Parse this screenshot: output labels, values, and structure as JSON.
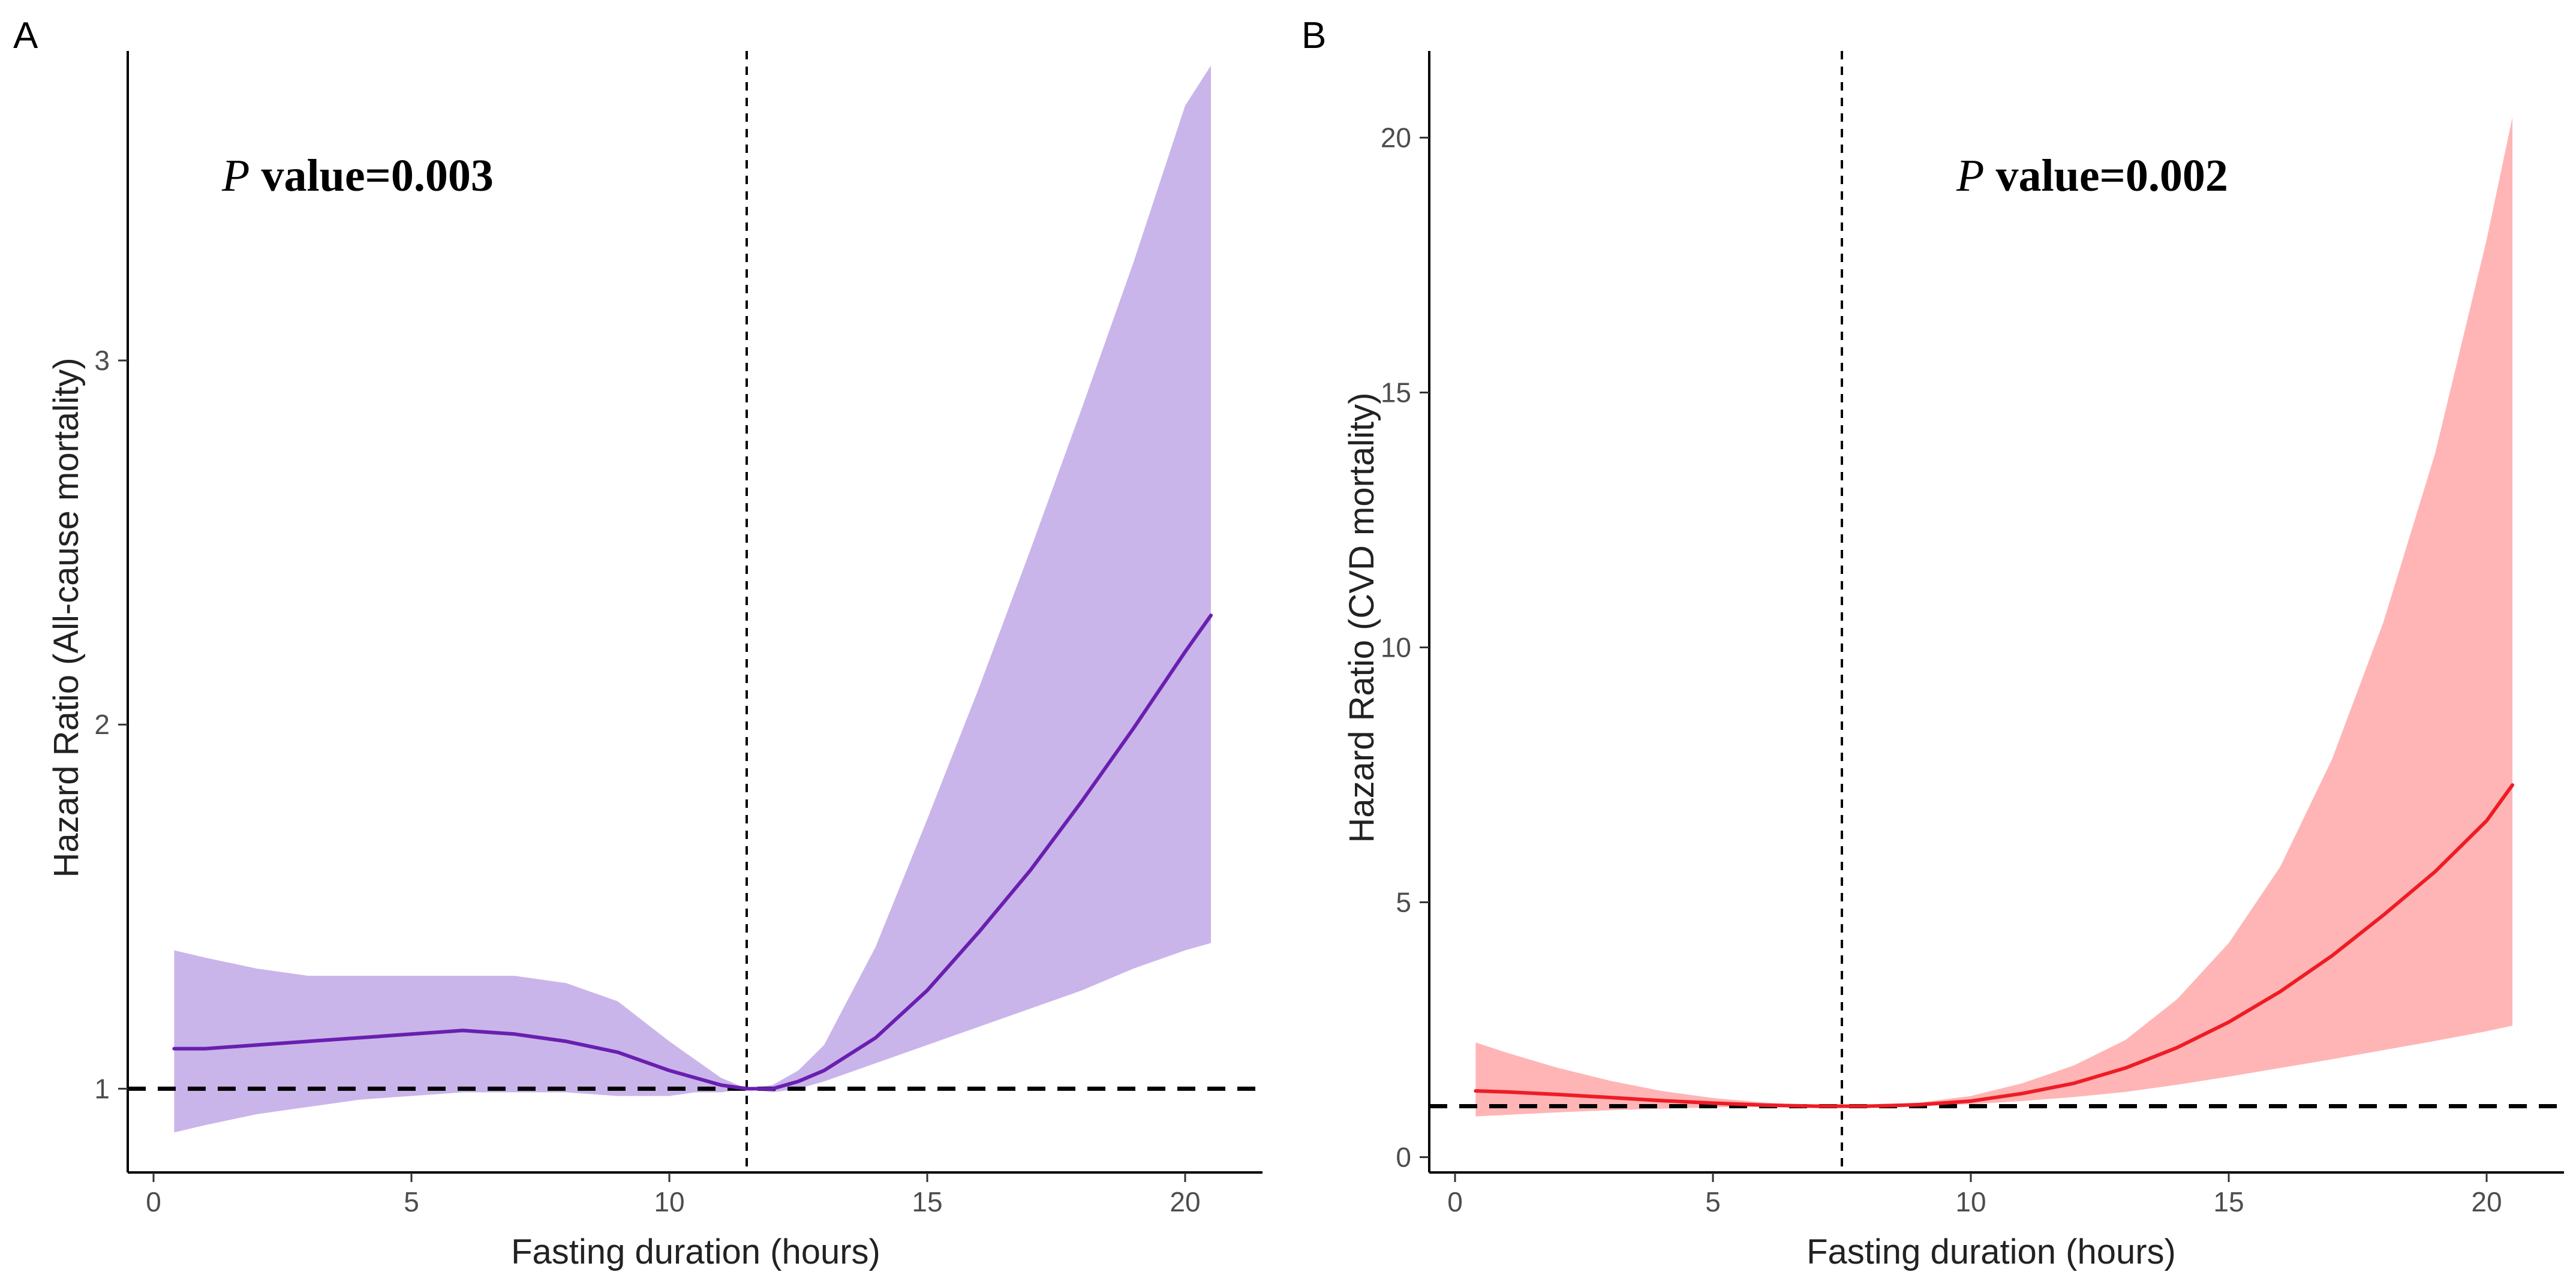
{
  "chart_data": [
    {
      "type": "line",
      "panel_label": "A",
      "annotation_p": "P",
      "annotation_rest": " value=0.003",
      "xlabel": "Fasting duration (hours)",
      "ylabel": "Hazard Ratio (All-cause mortality)",
      "xlim": [
        -0.5,
        21.5
      ],
      "ylim": [
        0.77,
        3.85
      ],
      "xticks": [
        0,
        5,
        10,
        15,
        20
      ],
      "yticks": [
        1,
        2,
        3
      ],
      "reference_x": 11.5,
      "reference_y": 1,
      "line_color": "#6a1fb0",
      "band_color": "#c9b5ea",
      "series": [
        {
          "name": "Hazard ratio",
          "x": [
            0.4,
            1,
            2,
            3,
            4,
            5,
            6,
            7,
            8,
            9,
            10,
            10.5,
            11,
            11.5,
            12,
            12.5,
            13,
            14,
            15,
            16,
            17,
            18,
            19,
            20,
            20.5
          ],
          "y": [
            1.11,
            1.11,
            1.12,
            1.13,
            1.14,
            1.15,
            1.16,
            1.15,
            1.13,
            1.1,
            1.05,
            1.03,
            1.01,
            1.0,
            1.0,
            1.02,
            1.05,
            1.14,
            1.27,
            1.43,
            1.6,
            1.79,
            1.99,
            2.2,
            2.3
          ],
          "lower": [
            0.88,
            0.9,
            0.93,
            0.95,
            0.97,
            0.98,
            0.99,
            0.99,
            0.99,
            0.98,
            0.98,
            0.99,
            0.99,
            1.0,
            0.99,
            1.0,
            1.02,
            1.07,
            1.12,
            1.17,
            1.22,
            1.27,
            1.33,
            1.38,
            1.4
          ],
          "upper": [
            1.38,
            1.36,
            1.33,
            1.31,
            1.31,
            1.31,
            1.31,
            1.31,
            1.29,
            1.24,
            1.13,
            1.08,
            1.03,
            1.0,
            1.01,
            1.05,
            1.12,
            1.39,
            1.74,
            2.1,
            2.48,
            2.87,
            3.27,
            3.7,
            3.81
          ]
        }
      ]
    },
    {
      "type": "line",
      "panel_label": "B",
      "annotation_p": "P",
      "annotation_rest": " value=0.002",
      "xlabel": "Fasting duration (hours)",
      "ylabel": "Hazard Ratio (CVD mortality)",
      "xlim": [
        -0.5,
        21.5
      ],
      "ylim": [
        -0.3,
        21.7
      ],
      "xticks": [
        0,
        5,
        10,
        15,
        20
      ],
      "yticks": [
        0,
        5,
        10,
        15,
        20
      ],
      "reference_x": 7.5,
      "reference_y": 1,
      "line_color": "#ee1c25",
      "band_color": "#ffb5b5",
      "series": [
        {
          "name": "Hazard ratio",
          "x": [
            0.4,
            1,
            2,
            3,
            4,
            5,
            6,
            7,
            7.5,
            8,
            9,
            10,
            11,
            12,
            13,
            14,
            15,
            16,
            17,
            18,
            19,
            20,
            20.5
          ],
          "y": [
            1.3,
            1.28,
            1.23,
            1.17,
            1.11,
            1.06,
            1.02,
            1.0,
            1.0,
            1.0,
            1.03,
            1.1,
            1.25,
            1.45,
            1.75,
            2.15,
            2.65,
            3.25,
            3.95,
            4.75,
            5.6,
            6.6,
            7.3
          ],
          "lower": [
            0.8,
            0.83,
            0.88,
            0.92,
            0.95,
            0.98,
            0.99,
            1.0,
            1.0,
            1.0,
            1.01,
            1.04,
            1.1,
            1.18,
            1.28,
            1.42,
            1.58,
            1.75,
            1.92,
            2.1,
            2.28,
            2.47,
            2.58
          ],
          "upper": [
            2.25,
            2.05,
            1.75,
            1.5,
            1.3,
            1.16,
            1.07,
            1.01,
            1.0,
            1.01,
            1.07,
            1.2,
            1.45,
            1.8,
            2.3,
            3.1,
            4.2,
            5.7,
            7.8,
            10.5,
            13.8,
            18.0,
            20.4
          ]
        }
      ]
    }
  ]
}
